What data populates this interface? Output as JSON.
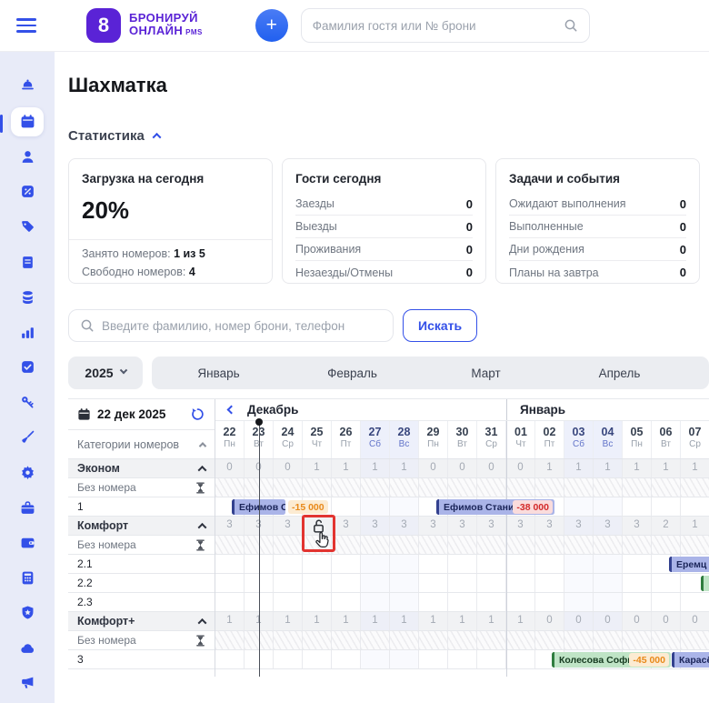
{
  "topbar": {
    "logo_line1": "БРОНИРУЙ",
    "logo_line2": "ОНЛАЙН",
    "logo_suffix": "PMS",
    "logo_glyph": "8",
    "plus_label": "+",
    "search_placeholder": "Фамилия гостя или № брони"
  },
  "sidebar": {
    "icons": [
      "bell",
      "calendar",
      "guests",
      "discounts",
      "tags",
      "documents",
      "finance",
      "analytics",
      "tasks",
      "keys",
      "cleaning",
      "settings",
      "services",
      "wallet",
      "calculator",
      "security",
      "cloud",
      "marketing"
    ],
    "active_index": 1
  },
  "page": {
    "title": "Шахматка",
    "stats_label": "Статистика"
  },
  "cards": [
    {
      "title": "Загрузка на сегодня",
      "value": "20%",
      "rows": [
        {
          "label": "Занято номеров:",
          "value": "1 из 5"
        },
        {
          "label": "Свободно номеров:",
          "value": "4"
        }
      ]
    },
    {
      "title": "Гости сегодня",
      "rows": [
        {
          "label": "Заезды",
          "value": "0"
        },
        {
          "label": "Выезды",
          "value": "0"
        },
        {
          "label": "Проживания",
          "value": "0"
        },
        {
          "label": "Незаезды/Отмены",
          "value": "0"
        }
      ]
    },
    {
      "title": "Задачи и события",
      "rows": [
        {
          "label": "Ожидают выполнения",
          "value": "0"
        },
        {
          "label": "Выполненные",
          "value": "0"
        },
        {
          "label": "Дни рождения",
          "value": "0"
        },
        {
          "label": "Планы на завтра",
          "value": "0"
        }
      ]
    }
  ],
  "search": {
    "placeholder": "Введите фамилию, номер брони, телефон",
    "button": "Искать"
  },
  "period": {
    "year": "2025",
    "months": [
      "Январь",
      "Февраль",
      "Март",
      "Апрель"
    ]
  },
  "calendar": {
    "date_label": "22 дек 2025",
    "left_header": "Категории номеров",
    "month_sections": [
      {
        "label": "Декабрь",
        "cols": 10
      },
      {
        "label": "Январь",
        "cols": 7
      }
    ],
    "days": [
      {
        "num": "22",
        "dow": "Пн",
        "weekend": false
      },
      {
        "num": "23",
        "dow": "Вт",
        "weekend": false
      },
      {
        "num": "24",
        "dow": "Ср",
        "weekend": false
      },
      {
        "num": "25",
        "dow": "Чт",
        "weekend": false
      },
      {
        "num": "26",
        "dow": "Пт",
        "weekend": false
      },
      {
        "num": "27",
        "dow": "Сб",
        "weekend": true
      },
      {
        "num": "28",
        "dow": "Вс",
        "weekend": true
      },
      {
        "num": "29",
        "dow": "Пн",
        "weekend": false
      },
      {
        "num": "30",
        "dow": "Вт",
        "weekend": false
      },
      {
        "num": "31",
        "dow": "Ср",
        "weekend": false
      },
      {
        "num": "01",
        "dow": "Чт",
        "weekend": false
      },
      {
        "num": "02",
        "dow": "Пт",
        "weekend": false
      },
      {
        "num": "03",
        "dow": "Сб",
        "weekend": true
      },
      {
        "num": "04",
        "dow": "Вс",
        "weekend": true
      },
      {
        "num": "05",
        "dow": "Пн",
        "weekend": false
      },
      {
        "num": "06",
        "dow": "Вт",
        "weekend": false
      },
      {
        "num": "07",
        "dow": "Ср",
        "weekend": false
      }
    ],
    "today_col_index": 1,
    "rows": [
      {
        "type": "category",
        "label": "Эконом",
        "values": [
          "0",
          "0",
          "0",
          "1",
          "1",
          "1",
          "1",
          "0",
          "0",
          "0",
          "0",
          "1",
          "1",
          "1",
          "1",
          "1",
          "1"
        ]
      },
      {
        "type": "unassigned",
        "label": "Без номера"
      },
      {
        "type": "room",
        "label": "1"
      },
      {
        "type": "category",
        "label": "Комфорт",
        "values": [
          "3",
          "3",
          "3",
          null,
          "3",
          "3",
          "3",
          "3",
          "3",
          "3",
          "3",
          "3",
          "3",
          "3",
          "3",
          "2",
          "1"
        ]
      },
      {
        "type": "unassigned",
        "label": "Без номера"
      },
      {
        "type": "room",
        "label": "2.1"
      },
      {
        "type": "room",
        "label": "2.2"
      },
      {
        "type": "room",
        "label": "2.3"
      },
      {
        "type": "category",
        "label": "Комфорт+",
        "values": [
          "1",
          "1",
          "1",
          "1",
          "1",
          "1",
          "1",
          "1",
          "1",
          "1",
          "1",
          "0",
          "0",
          "0",
          "0",
          "0",
          "0"
        ]
      },
      {
        "type": "unassigned",
        "label": "Без номера"
      },
      {
        "type": "room",
        "label": "3"
      }
    ],
    "bookings": [
      {
        "row": 2,
        "start": 0.55,
        "span": 1.85,
        "color": "blue",
        "name": "Ефимов С",
        "badge": {
          "text": "-15 000",
          "tone": "orange",
          "inside": false
        }
      },
      {
        "row": 2,
        "start": 7.6,
        "span": 4.05,
        "color": "blue",
        "name": "Ефимов Станис",
        "badge": {
          "text": "-38 000",
          "tone": "red",
          "inside": true
        }
      },
      {
        "row": 5,
        "start": 15.6,
        "span": 2.0,
        "color": "blue",
        "name": "Еремц"
      },
      {
        "row": 6,
        "start": 16.7,
        "span": 1.0,
        "color": "green",
        "name": ""
      },
      {
        "row": 10,
        "start": 11.55,
        "span": 4.1,
        "color": "green",
        "name": "Колесова Софь",
        "badge": {
          "text": "-45 000",
          "tone": "orange",
          "inside": true
        }
      },
      {
        "row": 10,
        "start": 15.7,
        "span": 2.0,
        "color": "blue",
        "name": "Карасё"
      }
    ],
    "annotation": {
      "row_index": 3,
      "col_index": 3,
      "meaning": "lock-click-indicator"
    }
  },
  "colors": {
    "accent_blue": "#3350e8",
    "brand_purple": "#5a23d6",
    "weekend_bg": "#edf0fb",
    "annotation_red": "#e23430",
    "pill_blue_bg": "#aab4e8",
    "pill_blue_border": "#33418f",
    "pill_blue_text": "#1b2559",
    "pill_green_bg": "#bfe4c6",
    "pill_green_border": "#2f7d3f",
    "pill_green_text": "#163a20",
    "badge_orange_bg": "#fcebd2",
    "badge_orange_text": "#e8891a",
    "badge_red_bg": "#fadcdc",
    "badge_red_text": "#d32b2b"
  }
}
